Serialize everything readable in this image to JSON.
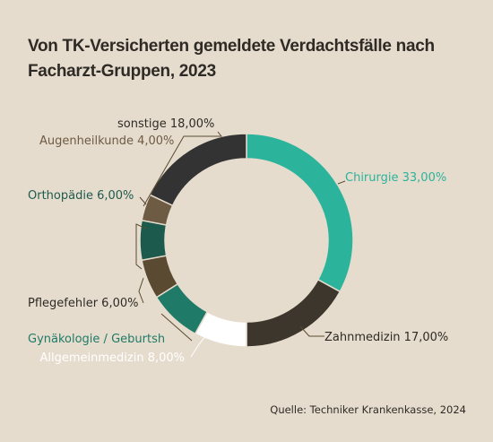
{
  "title": "Von TK-Versicherten gemeldete Verdachtsfälle nach Facharzt-Gruppen, 2023",
  "source": "Quelle: Techniker Krankenkasse, 2024",
  "chart_data": {
    "type": "pie",
    "title": "Von TK-Versicherten gemeldete Verdachtsfälle nach Facharzt-Gruppen, 2023",
    "donut": true,
    "slices": [
      {
        "label": "Chirurgie",
        "value": 33,
        "display": "Chirurgie 33,00%",
        "color": "#2bb39b",
        "text_color": "#2bb39b"
      },
      {
        "label": "Zahnmedizin",
        "value": 17,
        "display": "Zahnmedizin 17,00%",
        "color": "#3d362c",
        "text_color": "#2e2a25"
      },
      {
        "label": "Allgemeinmedizin",
        "value": 8,
        "display": "Allgemeinmedizin 8,00%",
        "color": "#ffffff",
        "text_color": "#ffffff"
      },
      {
        "label": "Gynäkologie / Geburtshilfe",
        "value": 8,
        "display": "Gynäkologie / Geburtsh",
        "color": "#1f7a68",
        "text_color": "#1f7a68"
      },
      {
        "label": "Pflegefehler",
        "value": 6,
        "display": "Pflegefehler 6,00%",
        "color": "#5b4a32",
        "text_color": "#2e2a25"
      },
      {
        "label": "Orthopädie",
        "value": 6,
        "display": "Orthopädie 6,00%",
        "color": "#1d5a4e",
        "text_color": "#1d5a4e"
      },
      {
        "label": "Augenheilkunde",
        "value": 4,
        "display": "Augenheilkunde 4,00%",
        "color": "#6d5b43",
        "text_color": "#6d5b43"
      },
      {
        "label": "sonstige",
        "value": 18,
        "display": "sonstige 18,00%",
        "color": "#333333",
        "text_color": "#2e2a25"
      }
    ]
  }
}
